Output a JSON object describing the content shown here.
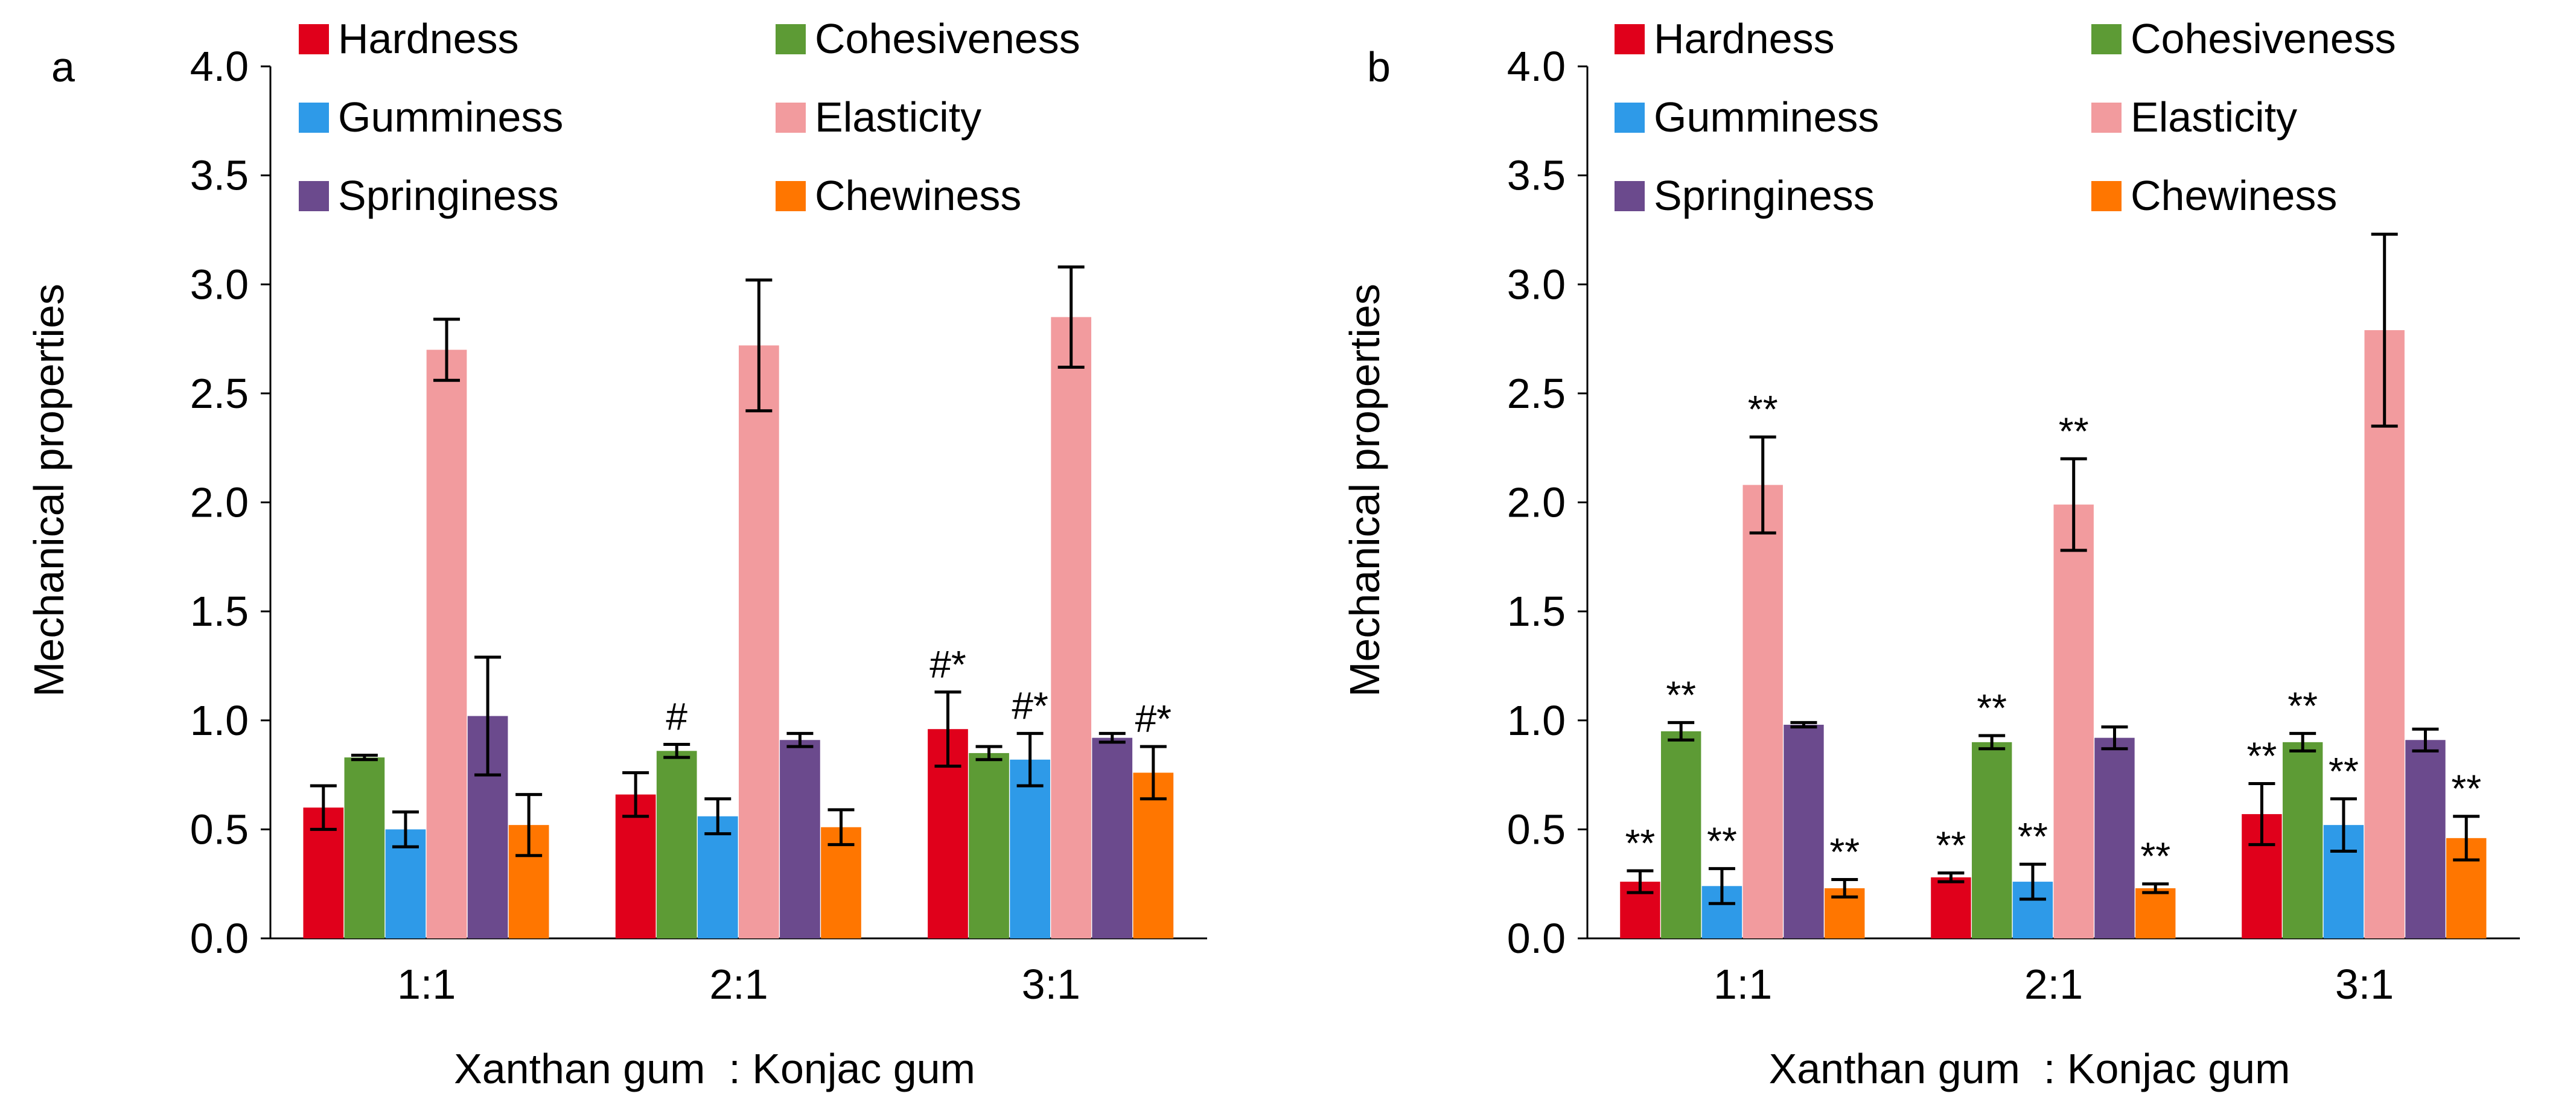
{
  "chart_data": [
    {
      "panel_label": "a",
      "type": "bar",
      "categories": [
        "1:1",
        "2:1",
        "3:1"
      ],
      "xlabel": "Xanthan gum  : Konjac gum",
      "ylabel": "Mechanical properties",
      "ylim": [
        0,
        4.0
      ],
      "yticks": [
        "0.0",
        "0.5",
        "1.0",
        "1.5",
        "2.0",
        "2.5",
        "3.0",
        "3.5",
        "4.0"
      ],
      "grid": false,
      "legend_position": "top",
      "series": [
        {
          "name": "Hardness",
          "color": "#e0001b",
          "values": [
            0.6,
            0.66,
            0.96
          ],
          "errors": [
            0.1,
            0.1,
            0.17
          ],
          "annotations": [
            "",
            "",
            "#*"
          ]
        },
        {
          "name": "Cohesiveness",
          "color": "#5d9b35",
          "values": [
            0.83,
            0.86,
            0.85
          ],
          "errors": [
            0.01,
            0.03,
            0.03
          ],
          "annotations": [
            "",
            "#",
            ""
          ]
        },
        {
          "name": "Gumminess",
          "color": "#2e9ae8",
          "values": [
            0.5,
            0.56,
            0.82
          ],
          "errors": [
            0.08,
            0.08,
            0.12
          ],
          "annotations": [
            "",
            "",
            "#*"
          ]
        },
        {
          "name": "Elasticity",
          "color": "#f29b9e",
          "values": [
            2.7,
            2.72,
            2.85
          ],
          "errors": [
            0.14,
            0.3,
            0.23
          ],
          "annotations": [
            "",
            "",
            ""
          ]
        },
        {
          "name": "Springiness",
          "color": "#6b4a8d",
          "values": [
            1.02,
            0.91,
            0.92
          ],
          "errors": [
            0.27,
            0.03,
            0.02
          ],
          "annotations": [
            "",
            "",
            ""
          ]
        },
        {
          "name": "Chewiness",
          "color": "#ff7600",
          "values": [
            0.52,
            0.51,
            0.76
          ],
          "errors": [
            0.14,
            0.08,
            0.12
          ],
          "annotations": [
            "",
            "",
            "#*"
          ]
        }
      ]
    },
    {
      "panel_label": "b",
      "type": "bar",
      "categories": [
        "1:1",
        "2:1",
        "3:1"
      ],
      "xlabel": "Xanthan gum  : Konjac gum",
      "ylabel": "Mechanical properties",
      "ylim": [
        0,
        4.0
      ],
      "yticks": [
        "0.0",
        "0.5",
        "1.0",
        "1.5",
        "2.0",
        "2.5",
        "3.0",
        "3.5",
        "4.0"
      ],
      "grid": false,
      "legend_position": "top",
      "series": [
        {
          "name": "Hardness",
          "color": "#e0001b",
          "values": [
            0.26,
            0.28,
            0.57
          ],
          "errors": [
            0.05,
            0.02,
            0.14
          ],
          "annotations": [
            "**",
            "**",
            "**"
          ]
        },
        {
          "name": "Cohesiveness",
          "color": "#5d9b35",
          "values": [
            0.95,
            0.9,
            0.9
          ],
          "errors": [
            0.04,
            0.03,
            0.04
          ],
          "annotations": [
            "**",
            "**",
            "**"
          ]
        },
        {
          "name": "Gumminess",
          "color": "#2e9ae8",
          "values": [
            0.24,
            0.26,
            0.52
          ],
          "errors": [
            0.08,
            0.08,
            0.12
          ],
          "annotations": [
            "**",
            "**",
            "**"
          ]
        },
        {
          "name": "Elasticity",
          "color": "#f29b9e",
          "values": [
            2.08,
            1.99,
            2.79
          ],
          "errors": [
            0.22,
            0.21,
            0.44
          ],
          "annotations": [
            "**",
            "**",
            ""
          ]
        },
        {
          "name": "Springiness",
          "color": "#6b4a8d",
          "values": [
            0.98,
            0.92,
            0.91
          ],
          "errors": [
            0.01,
            0.05,
            0.05
          ],
          "annotations": [
            "",
            "",
            ""
          ]
        },
        {
          "name": "Chewiness",
          "color": "#ff7600",
          "values": [
            0.23,
            0.23,
            0.46
          ],
          "errors": [
            0.04,
            0.02,
            0.1
          ],
          "annotations": [
            "**",
            "**",
            "**"
          ]
        }
      ]
    }
  ]
}
